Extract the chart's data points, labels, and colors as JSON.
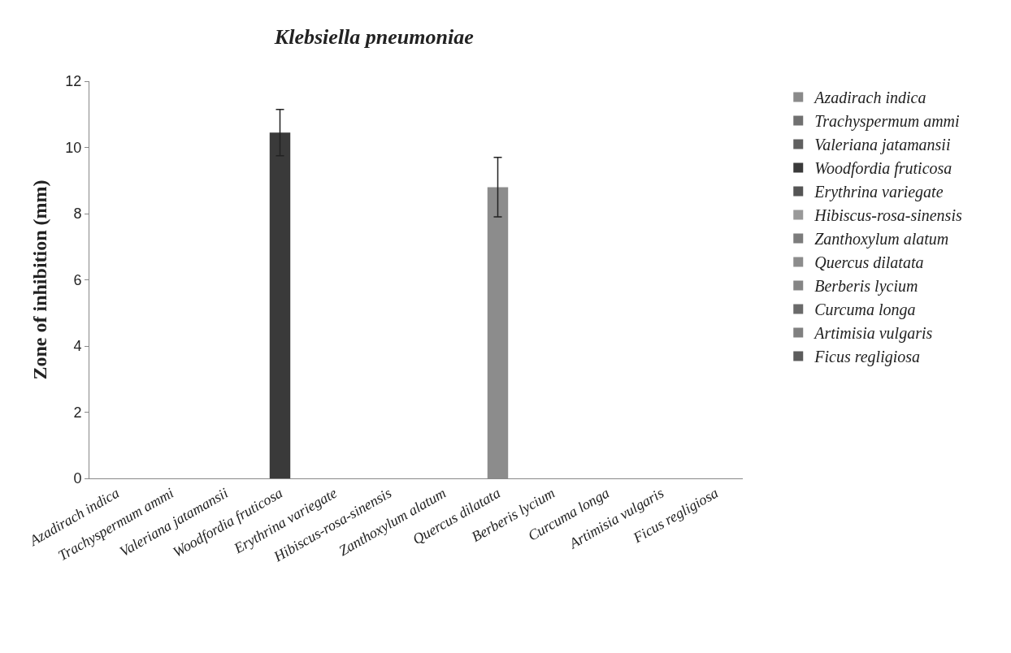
{
  "chart_data": {
    "type": "bar",
    "title": "Klebsiella pneumoniae",
    "ylabel": "Zone of inhibition (mm)",
    "categories": [
      "Azadirach indica",
      "Trachyspermum ammi",
      "Valeriana jatamansii",
      "Woodfordia fruticosa",
      "Erythrina variegate",
      "Hibiscus-rosa-sinensis",
      "Zanthoxylum alatum",
      "Quercus dilatata",
      "Berberis lycium",
      "Curcuma longa",
      "Artimisia vulgaris",
      "Ficus regligiosa"
    ],
    "series": [
      {
        "name": "Azadirach indica",
        "color": "#8a8a8a",
        "values": [
          0,
          null,
          null,
          null,
          null,
          null,
          null,
          null,
          null,
          null,
          null,
          null
        ]
      },
      {
        "name": "Trachyspermum ammi",
        "color": "#707070",
        "values": [
          null,
          0,
          null,
          null,
          null,
          null,
          null,
          null,
          null,
          null,
          null,
          null
        ]
      },
      {
        "name": "Valeriana jatamansii",
        "color": "#606060",
        "values": [
          null,
          null,
          0,
          null,
          null,
          null,
          null,
          null,
          null,
          null,
          null,
          null
        ]
      },
      {
        "name": "Woodfordia fruticosa",
        "color": "#3a3a3a",
        "values": [
          null,
          null,
          null,
          10.45,
          null,
          null,
          null,
          null,
          null,
          null,
          null,
          null
        ],
        "errors": [
          null,
          null,
          null,
          0.7,
          null,
          null,
          null,
          null,
          null,
          null,
          null,
          null
        ]
      },
      {
        "name": "Erythrina variegate",
        "color": "#555555",
        "values": [
          null,
          null,
          null,
          null,
          0,
          null,
          null,
          null,
          null,
          null,
          null,
          null
        ]
      },
      {
        "name": "Hibiscus-rosa-sinensis",
        "color": "#999999",
        "values": [
          null,
          null,
          null,
          null,
          null,
          0,
          null,
          null,
          null,
          null,
          null,
          null
        ]
      },
      {
        "name": "Zanthoxylum alatum",
        "color": "#7c7c7c",
        "values": [
          null,
          null,
          null,
          null,
          null,
          null,
          0,
          null,
          null,
          null,
          null,
          null
        ]
      },
      {
        "name": "Quercus dilatata",
        "color": "#8c8c8c",
        "values": [
          null,
          null,
          null,
          null,
          null,
          null,
          null,
          8.8,
          null,
          null,
          null,
          null
        ],
        "errors": [
          null,
          null,
          null,
          null,
          null,
          null,
          null,
          0.9,
          null,
          null,
          null,
          null
        ]
      },
      {
        "name": "Berberis lycium",
        "color": "#858585",
        "values": [
          null,
          null,
          null,
          null,
          null,
          null,
          null,
          null,
          0,
          null,
          null,
          null
        ]
      },
      {
        "name": "Curcuma longa",
        "color": "#6a6a6a",
        "values": [
          null,
          null,
          null,
          null,
          null,
          null,
          null,
          null,
          null,
          0,
          null,
          null
        ]
      },
      {
        "name": "Artimisia vulgaris",
        "color": "#808080",
        "values": [
          null,
          null,
          null,
          null,
          null,
          null,
          null,
          null,
          null,
          null,
          0,
          null
        ]
      },
      {
        "name": "Ficus regligiosa",
        "color": "#5c5c5c",
        "values": [
          null,
          null,
          null,
          null,
          null,
          null,
          null,
          null,
          null,
          null,
          null,
          0
        ]
      }
    ],
    "ylim": [
      0,
      12
    ],
    "yticks": [
      0,
      2,
      4,
      6,
      8,
      10,
      12
    ],
    "legend": "right"
  }
}
